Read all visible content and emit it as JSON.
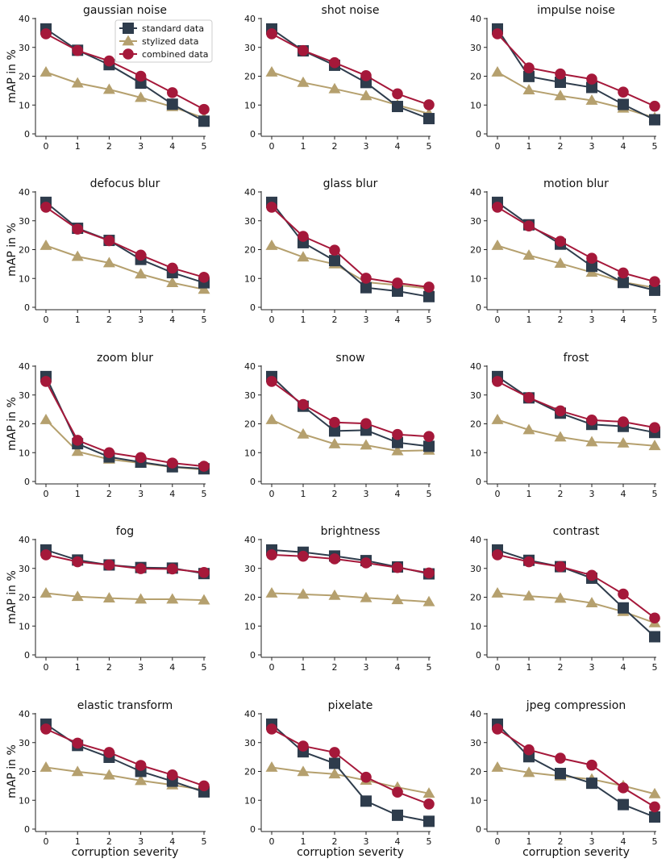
{
  "colors": {
    "standard": "#2e3c4c",
    "stylized": "#b5a06e",
    "combined": "#a5183a",
    "axis": "#222222"
  },
  "legend": {
    "standard": "standard data",
    "stylized": "stylized data",
    "combined": "combined data"
  },
  "ylabel": "mAP in %",
  "xlabel": "corruption severity",
  "chart_data": [
    {
      "type": "line",
      "title": "gaussian noise",
      "x": [
        0,
        1,
        2,
        3,
        4,
        5
      ],
      "ylim": [
        0,
        40
      ],
      "yticks": [
        0,
        10,
        20,
        30,
        40
      ],
      "series": [
        {
          "name": "standard data",
          "values": [
            36.4,
            29.0,
            24.0,
            17.6,
            10.3,
            4.4
          ]
        },
        {
          "name": "stylized data",
          "values": [
            21.4,
            17.6,
            15.4,
            12.6,
            9.4,
            5.5
          ]
        },
        {
          "name": "combined data",
          "values": [
            34.7,
            28.9,
            25.3,
            20.0,
            14.3,
            8.5
          ]
        }
      ]
    },
    {
      "type": "line",
      "title": "shot noise",
      "x": [
        0,
        1,
        2,
        3,
        4,
        5
      ],
      "ylim": [
        0,
        40
      ],
      "yticks": [
        0,
        10,
        20,
        30,
        40
      ],
      "series": [
        {
          "name": "standard data",
          "values": [
            36.4,
            28.8,
            23.8,
            17.8,
            9.5,
            5.3
          ]
        },
        {
          "name": "stylized data",
          "values": [
            21.4,
            17.8,
            15.6,
            13.2,
            10.0,
            7.0
          ]
        },
        {
          "name": "combined data",
          "values": [
            34.7,
            28.9,
            24.7,
            20.2,
            13.9,
            10.1
          ]
        }
      ]
    },
    {
      "type": "line",
      "title": "impulse noise",
      "x": [
        0,
        1,
        2,
        3,
        4,
        5
      ],
      "ylim": [
        0,
        40
      ],
      "yticks": [
        0,
        10,
        20,
        30,
        40
      ],
      "series": [
        {
          "name": "standard data",
          "values": [
            36.4,
            19.9,
            17.9,
            16.1,
            10.2,
            4.9
          ]
        },
        {
          "name": "stylized data",
          "values": [
            21.4,
            15.2,
            13.2,
            11.6,
            8.9,
            5.6
          ]
        },
        {
          "name": "combined data",
          "values": [
            34.7,
            22.9,
            20.8,
            19.0,
            14.5,
            9.6
          ]
        }
      ]
    },
    {
      "type": "line",
      "title": "defocus blur",
      "x": [
        0,
        1,
        2,
        3,
        4,
        5
      ],
      "ylim": [
        0,
        40
      ],
      "yticks": [
        0,
        10,
        20,
        30,
        40
      ],
      "series": [
        {
          "name": "standard data",
          "values": [
            36.4,
            27.4,
            23.2,
            16.6,
            12.0,
            8.5
          ]
        },
        {
          "name": "stylized data",
          "values": [
            21.4,
            17.6,
            15.4,
            11.5,
            8.5,
            6.2
          ]
        },
        {
          "name": "combined data",
          "values": [
            34.7,
            27.1,
            23.1,
            18.1,
            13.6,
            10.4
          ]
        }
      ]
    },
    {
      "type": "line",
      "title": "glass blur",
      "x": [
        0,
        1,
        2,
        3,
        4,
        5
      ],
      "ylim": [
        0,
        40
      ],
      "yticks": [
        0,
        10,
        20,
        30,
        40
      ],
      "series": [
        {
          "name": "standard data",
          "values": [
            36.4,
            22.4,
            16.2,
            6.8,
            5.6,
            3.7
          ]
        },
        {
          "name": "stylized data",
          "values": [
            21.4,
            17.4,
            15.0,
            8.7,
            7.7,
            6.5
          ]
        },
        {
          "name": "combined data",
          "values": [
            34.7,
            24.6,
            19.8,
            10.1,
            8.4,
            7.0
          ]
        }
      ]
    },
    {
      "type": "line",
      "title": "motion blur",
      "x": [
        0,
        1,
        2,
        3,
        4,
        5
      ],
      "ylim": [
        0,
        40
      ],
      "yticks": [
        0,
        10,
        20,
        30,
        40
      ],
      "series": [
        {
          "name": "standard data",
          "values": [
            36.4,
            28.6,
            21.9,
            14.2,
            8.6,
            5.9
          ]
        },
        {
          "name": "stylized data",
          "values": [
            21.4,
            18.0,
            15.2,
            12.1,
            8.7,
            6.8
          ]
        },
        {
          "name": "combined data",
          "values": [
            34.7,
            28.2,
            22.9,
            17.0,
            11.9,
            8.9
          ]
        }
      ]
    },
    {
      "type": "line",
      "title": "zoom blur",
      "x": [
        0,
        1,
        2,
        3,
        4,
        5
      ],
      "ylim": [
        0,
        40
      ],
      "yticks": [
        0,
        10,
        20,
        30,
        40
      ],
      "series": [
        {
          "name": "standard data",
          "values": [
            36.4,
            13.1,
            8.5,
            6.7,
            5.1,
            4.4
          ]
        },
        {
          "name": "stylized data",
          "values": [
            21.4,
            10.4,
            7.7,
            6.4,
            5.0,
            4.1
          ]
        },
        {
          "name": "combined data",
          "values": [
            34.7,
            14.3,
            10.0,
            8.3,
            6.4,
            5.3
          ]
        }
      ]
    },
    {
      "type": "line",
      "title": "snow",
      "x": [
        0,
        1,
        2,
        3,
        4,
        5
      ],
      "ylim": [
        0,
        40
      ],
      "yticks": [
        0,
        10,
        20,
        30,
        40
      ],
      "series": [
        {
          "name": "standard data",
          "values": [
            36.4,
            26.1,
            17.5,
            17.8,
            13.5,
            12.2
          ]
        },
        {
          "name": "stylized data",
          "values": [
            21.4,
            16.4,
            13.0,
            12.6,
            10.6,
            10.8
          ]
        },
        {
          "name": "combined data",
          "values": [
            34.7,
            26.7,
            20.5,
            20.1,
            16.3,
            15.6
          ]
        }
      ]
    },
    {
      "type": "line",
      "title": "frost",
      "x": [
        0,
        1,
        2,
        3,
        4,
        5
      ],
      "ylim": [
        0,
        40
      ],
      "yticks": [
        0,
        10,
        20,
        30,
        40
      ],
      "series": [
        {
          "name": "standard data",
          "values": [
            36.4,
            29.0,
            23.7,
            19.8,
            19.1,
            17.0
          ]
        },
        {
          "name": "stylized data",
          "values": [
            21.4,
            17.9,
            15.4,
            13.7,
            13.3,
            12.4
          ]
        },
        {
          "name": "combined data",
          "values": [
            34.7,
            29.1,
            24.5,
            21.3,
            20.7,
            18.7
          ]
        }
      ]
    },
    {
      "type": "line",
      "title": "fog",
      "x": [
        0,
        1,
        2,
        3,
        4,
        5
      ],
      "ylim": [
        0,
        40
      ],
      "yticks": [
        0,
        10,
        20,
        30,
        40
      ],
      "series": [
        {
          "name": "standard data",
          "values": [
            36.4,
            32.9,
            31.2,
            30.3,
            30.1,
            28.2
          ]
        },
        {
          "name": "stylized data",
          "values": [
            21.4,
            20.2,
            19.7,
            19.3,
            19.3,
            19.0
          ]
        },
        {
          "name": "combined data",
          "values": [
            34.7,
            32.3,
            31.2,
            29.9,
            29.8,
            28.6
          ]
        }
      ]
    },
    {
      "type": "line",
      "title": "brightness",
      "x": [
        0,
        1,
        2,
        3,
        4,
        5
      ],
      "ylim": [
        0,
        40
      ],
      "yticks": [
        0,
        10,
        20,
        30,
        40
      ],
      "series": [
        {
          "name": "standard data",
          "values": [
            36.4,
            35.6,
            34.3,
            32.7,
            30.5,
            28.1
          ]
        },
        {
          "name": "stylized data",
          "values": [
            21.4,
            21.0,
            20.6,
            19.8,
            19.1,
            18.4
          ]
        },
        {
          "name": "combined data",
          "values": [
            34.7,
            34.2,
            33.3,
            31.9,
            30.3,
            28.4
          ]
        }
      ]
    },
    {
      "type": "line",
      "title": "contrast",
      "x": [
        0,
        1,
        2,
        3,
        4,
        5
      ],
      "ylim": [
        0,
        40
      ],
      "yticks": [
        0,
        10,
        20,
        30,
        40
      ],
      "series": [
        {
          "name": "standard data",
          "values": [
            36.4,
            32.8,
            30.6,
            26.6,
            16.3,
            6.3
          ]
        },
        {
          "name": "stylized data",
          "values": [
            21.4,
            20.4,
            19.6,
            18.0,
            15.0,
            11.1
          ]
        },
        {
          "name": "combined data",
          "values": [
            34.7,
            32.3,
            30.6,
            27.6,
            21.1,
            12.8
          ]
        }
      ]
    },
    {
      "type": "line",
      "title": "elastic transform",
      "x": [
        0,
        1,
        2,
        3,
        4,
        5
      ],
      "ylim": [
        0,
        40
      ],
      "yticks": [
        0,
        10,
        20,
        30,
        40
      ],
      "series": [
        {
          "name": "standard data",
          "values": [
            36.4,
            29.0,
            24.9,
            20.0,
            16.6,
            12.9
          ]
        },
        {
          "name": "stylized data",
          "values": [
            21.4,
            19.9,
            18.7,
            16.8,
            15.3,
            13.6
          ]
        },
        {
          "name": "combined data",
          "values": [
            34.7,
            29.8,
            26.6,
            22.1,
            18.8,
            15.0
          ]
        }
      ]
    },
    {
      "type": "line",
      "title": "pixelate",
      "x": [
        0,
        1,
        2,
        3,
        4,
        5
      ],
      "ylim": [
        0,
        40
      ],
      "yticks": [
        0,
        10,
        20,
        30,
        40
      ],
      "series": [
        {
          "name": "standard data",
          "values": [
            36.4,
            26.8,
            22.8,
            9.7,
            4.8,
            2.7
          ]
        },
        {
          "name": "stylized data",
          "values": [
            21.4,
            19.9,
            19.1,
            16.9,
            14.5,
            12.4
          ]
        },
        {
          "name": "combined data",
          "values": [
            34.7,
            28.8,
            26.6,
            18.0,
            12.8,
            8.7
          ]
        }
      ]
    },
    {
      "type": "line",
      "title": "jpeg compression",
      "x": [
        0,
        1,
        2,
        3,
        4,
        5
      ],
      "ylim": [
        0,
        40
      ],
      "yticks": [
        0,
        10,
        20,
        30,
        40
      ],
      "series": [
        {
          "name": "standard data",
          "values": [
            36.4,
            25.1,
            19.3,
            15.9,
            8.5,
            4.2
          ]
        },
        {
          "name": "stylized data",
          "values": [
            21.4,
            19.6,
            18.4,
            17.3,
            15.0,
            12.2
          ]
        },
        {
          "name": "combined data",
          "values": [
            34.7,
            27.5,
            24.6,
            22.2,
            14.3,
            7.7
          ]
        }
      ]
    }
  ]
}
